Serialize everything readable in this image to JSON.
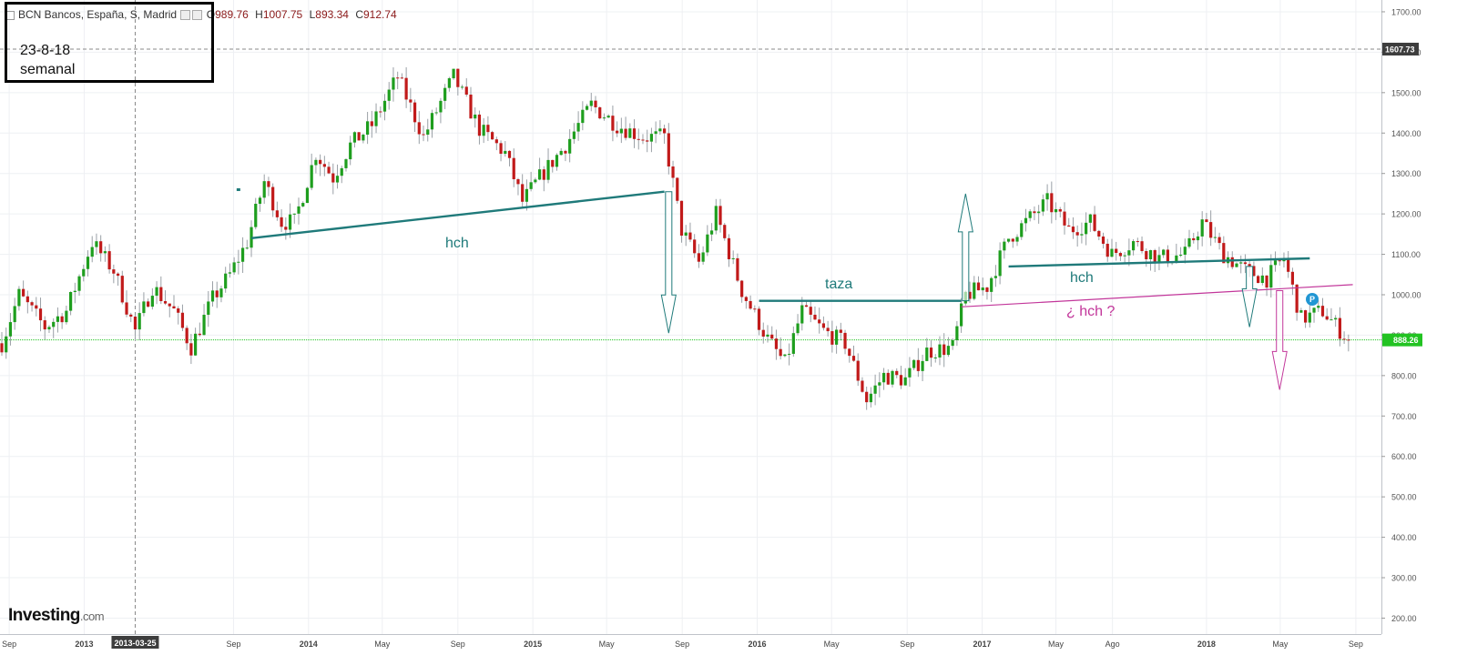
{
  "legend": {
    "symbol": "BCN Bancos, España, S, Madrid",
    "open_label": "O",
    "open": "989.76",
    "high_label": "H",
    "high": "1007.75",
    "low_label": "L",
    "low": "893.34",
    "close_label": "C",
    "close": "912.74"
  },
  "note": {
    "line1": "23-8-18",
    "line2": "semanal"
  },
  "logo": {
    "brand": "Investing",
    "suffix": ".com"
  },
  "annotations": {
    "hch_left": "hch",
    "taza": "taza",
    "hch_right": "hch",
    "hch_question": "¿ hch ?"
  },
  "badge": "P",
  "colors": {
    "up": "#1e9e1e",
    "down": "#c11a1a",
    "neckline": "#1f7a7a",
    "question": "#c2369a",
    "last_price": "#22c322",
    "crosshair": "#888888"
  },
  "chart_data": {
    "type": "candlestick",
    "title": "BCN Bancos, España, S, Madrid",
    "timeframe": "weekly",
    "x_range": [
      "2012-08-20",
      "2018-09-10"
    ],
    "ylim": [
      170,
      1720
    ],
    "y_ticks": [
      200,
      300,
      400,
      500,
      600,
      700,
      800,
      900,
      1000,
      1100,
      1200,
      1300,
      1400,
      1500,
      1600,
      1700
    ],
    "y_tick_labels": [
      "200.00",
      "300.00",
      "400.00",
      "500.00",
      "600.00",
      "700.00",
      "800.00",
      "900.00",
      "1000.00",
      "1100.00",
      "1200.00",
      "1300.00",
      "1400.00",
      "1500.00",
      "1600.00",
      "1700.00"
    ],
    "x_ticks": [
      {
        "label": "Sep",
        "date": "2012-09-01"
      },
      {
        "label": "2013",
        "date": "2013-01-01"
      },
      {
        "label": "2013-03-25",
        "date": "2013-03-25",
        "highlight": true
      },
      {
        "label": "Sep",
        "date": "2013-09-01"
      },
      {
        "label": "2014",
        "date": "2014-01-01"
      },
      {
        "label": "May",
        "date": "2014-05-01"
      },
      {
        "label": "Sep",
        "date": "2014-09-01"
      },
      {
        "label": "2015",
        "date": "2015-01-01"
      },
      {
        "label": "May",
        "date": "2015-05-01"
      },
      {
        "label": "Sep",
        "date": "2015-09-01"
      },
      {
        "label": "2016",
        "date": "2016-01-01"
      },
      {
        "label": "May",
        "date": "2016-05-01"
      },
      {
        "label": "Sep",
        "date": "2016-09-01"
      },
      {
        "label": "2017",
        "date": "2017-01-01"
      },
      {
        "label": "May",
        "date": "2017-05-01"
      },
      {
        "label": "Ago",
        "date": "2017-08-01"
      },
      {
        "label": "2018",
        "date": "2018-01-01"
      },
      {
        "label": "May",
        "date": "2018-05-01"
      },
      {
        "label": "Sep",
        "date": "2018-09-01"
      }
    ],
    "price_marks": [
      {
        "value": 1607.73,
        "label": "1607.73",
        "style": "crosshair"
      },
      {
        "value": 888.26,
        "label": "888.26",
        "style": "last"
      }
    ],
    "crosshair_date": "2013-03-25",
    "price_path": [
      [
        "2012-08-20",
        880
      ],
      [
        "2012-09-17",
        1000
      ],
      [
        "2012-10-29",
        920
      ],
      [
        "2012-12-03",
        960
      ],
      [
        "2013-01-14",
        1130
      ],
      [
        "2013-02-18",
        1060
      ],
      [
        "2013-03-25",
        910
      ],
      [
        "2013-04-22",
        1020
      ],
      [
        "2013-05-27",
        960
      ],
      [
        "2013-06-24",
        870
      ],
      [
        "2013-07-29",
        990
      ],
      [
        "2013-08-26",
        1050
      ],
      [
        "2013-09-23",
        1130
      ],
      [
        "2013-10-21",
        1280
      ],
      [
        "2013-11-18",
        1180
      ],
      [
        "2013-12-09",
        1180
      ],
      [
        "2014-01-13",
        1350
      ],
      [
        "2014-02-10",
        1290
      ],
      [
        "2014-03-10",
        1370
      ],
      [
        "2014-04-14",
        1420
      ],
      [
        "2014-05-26",
        1540
      ],
      [
        "2014-07-07",
        1390
      ],
      [
        "2014-08-25",
        1540
      ],
      [
        "2014-10-06",
        1410
      ],
      [
        "2014-11-17",
        1350
      ],
      [
        "2014-12-15",
        1230
      ],
      [
        "2015-01-12",
        1290
      ],
      [
        "2015-02-23",
        1370
      ],
      [
        "2015-04-06",
        1470
      ],
      [
        "2015-05-18",
        1420
      ],
      [
        "2015-06-29",
        1390
      ],
      [
        "2015-08-03",
        1390
      ],
      [
        "2015-08-31",
        1160
      ],
      [
        "2015-09-28",
        1080
      ],
      [
        "2015-10-26",
        1200
      ],
      [
        "2015-12-07",
        1010
      ],
      [
        "2016-01-18",
        890
      ],
      [
        "2016-02-15",
        830
      ],
      [
        "2016-03-14",
        960
      ],
      [
        "2016-04-18",
        910
      ],
      [
        "2016-05-23",
        880
      ],
      [
        "2016-06-27",
        740
      ],
      [
        "2016-07-25",
        800
      ],
      [
        "2016-08-29",
        790
      ],
      [
        "2016-10-03",
        860
      ],
      [
        "2016-11-14",
        870
      ],
      [
        "2016-12-05",
        1000
      ],
      [
        "2017-01-09",
        1020
      ],
      [
        "2017-02-13",
        1140
      ],
      [
        "2017-03-13",
        1180
      ],
      [
        "2017-04-17",
        1230
      ],
      [
        "2017-05-22",
        1160
      ],
      [
        "2017-06-26",
        1180
      ],
      [
        "2017-07-31",
        1100
      ],
      [
        "2017-09-04",
        1130
      ],
      [
        "2017-10-16",
        1090
      ],
      [
        "2017-11-27",
        1100
      ],
      [
        "2017-12-25",
        1180
      ],
      [
        "2018-01-29",
        1100
      ],
      [
        "2018-03-05",
        1060
      ],
      [
        "2018-04-09",
        1040
      ],
      [
        "2018-05-07",
        1090
      ],
      [
        "2018-06-04",
        940
      ],
      [
        "2018-07-09",
        960
      ],
      [
        "2018-08-20",
        888
      ]
    ],
    "drawings": [
      {
        "kind": "line",
        "name": "neckline-2014",
        "from": [
          "2013-09-30",
          1140
        ],
        "to": [
          "2015-08-03",
          1255
        ]
      },
      {
        "kind": "line",
        "name": "taza-neckline",
        "from": [
          "2016-01-04",
          985
        ],
        "to": [
          "2016-11-28",
          985
        ]
      },
      {
        "kind": "line",
        "name": "hch-neckline-2017",
        "from": [
          "2017-02-13",
          1070
        ],
        "to": [
          "2018-06-18",
          1090
        ]
      },
      {
        "kind": "line",
        "name": "question-neckline",
        "from": [
          "2016-11-28",
          970
        ],
        "to": [
          "2018-08-27",
          1025
        ],
        "style": "question"
      },
      {
        "kind": "arrow",
        "name": "target-down-2015",
        "x": "2015-08-10",
        "from": 1255,
        "to": 905
      },
      {
        "kind": "arrow",
        "name": "target-up-2016",
        "x": "2016-12-05",
        "from": 985,
        "to": 1250
      },
      {
        "kind": "arrow",
        "name": "target-down-2018a",
        "x": "2018-03-12",
        "from": 1070,
        "to": 920
      },
      {
        "kind": "arrow",
        "name": "target-down-2018b",
        "x": "2018-04-30",
        "from": 1010,
        "to": 765,
        "style": "question"
      },
      {
        "kind": "dot",
        "name": "stray-mark",
        "date": "2013-09-09",
        "value": 1260
      }
    ]
  }
}
